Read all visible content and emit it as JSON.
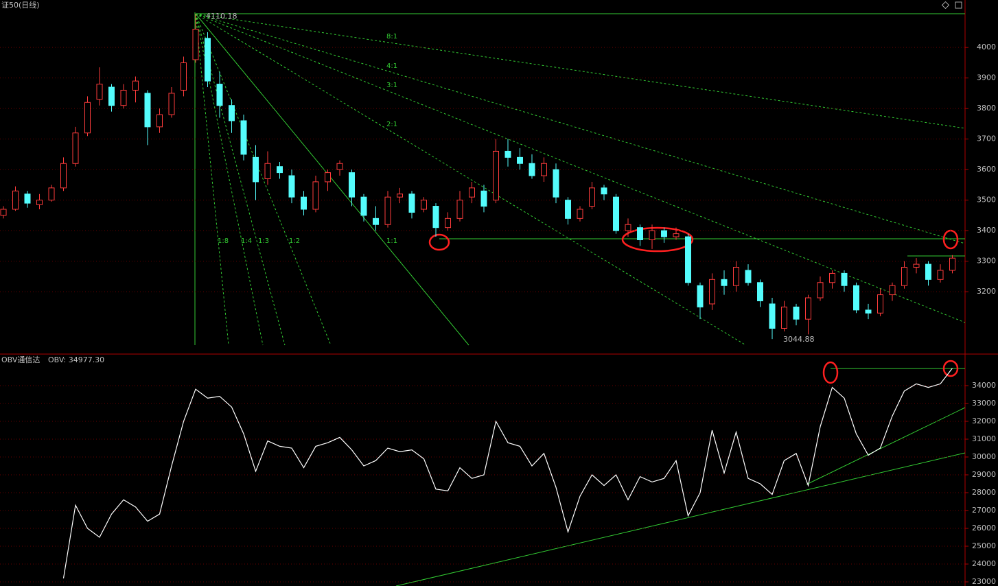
{
  "chart_data": [
    {
      "type": "candlestick",
      "title": "证50(日线)",
      "up_color": "#ff3c3c",
      "down_color": "#54fcfc",
      "open": [
        3450,
        3470,
        3520,
        3485,
        3500,
        3540,
        3620,
        3720,
        3830,
        3870,
        3810,
        3860,
        3850,
        3740,
        3780,
        3860,
        3960,
        4030,
        3880,
        3810,
        3760,
        3640,
        3570,
        3610,
        3580,
        3510,
        3470,
        3560,
        3600,
        3590,
        3510,
        3440,
        3420,
        3510,
        3520,
        3470,
        3480,
        3410,
        3440,
        3510,
        3530,
        3500,
        3660,
        3640,
        3620,
        3580,
        3600,
        3500,
        3440,
        3480,
        3540,
        3510,
        3400,
        3410,
        3370,
        3400,
        3380,
        3380,
        3220,
        3160,
        3240,
        3220,
        3270,
        3230,
        3160,
        3080,
        3150,
        3110,
        3180,
        3230,
        3260,
        3220,
        3140,
        3130,
        3190,
        3220,
        3280,
        3290,
        3240,
        3270
      ],
      "high": [
        3480,
        3545,
        3530,
        3520,
        3550,
        3640,
        3740,
        3840,
        3935,
        3880,
        3880,
        3905,
        3860,
        3800,
        3870,
        3970,
        4110.18,
        4050,
        3920,
        3830,
        3780,
        3680,
        3660,
        3625,
        3600,
        3530,
        3580,
        3600,
        3630,
        3600,
        3520,
        3480,
        3530,
        3540,
        3530,
        3510,
        3490,
        3460,
        3530,
        3560,
        3550,
        3700,
        3700,
        3670,
        3650,
        3640,
        3620,
        3510,
        3480,
        3560,
        3550,
        3520,
        3440,
        3420,
        3420,
        3410,
        3410,
        3390,
        3230,
        3260,
        3270,
        3300,
        3290,
        3240,
        3180,
        3170,
        3160,
        3190,
        3250,
        3270,
        3270,
        3230,
        3160,
        3210,
        3230,
        3300,
        3310,
        3300,
        3290,
        3320
      ],
      "low": [
        3440,
        3465,
        3475,
        3470,
        3495,
        3530,
        3610,
        3710,
        3810,
        3790,
        3800,
        3820,
        3680,
        3720,
        3770,
        3840,
        3950,
        3870,
        3770,
        3720,
        3630,
        3500,
        3550,
        3570,
        3490,
        3450,
        3460,
        3530,
        3580,
        3480,
        3430,
        3400,
        3410,
        3490,
        3440,
        3460,
        3380,
        3400,
        3430,
        3490,
        3460,
        3490,
        3610,
        3600,
        3570,
        3560,
        3490,
        3420,
        3430,
        3470,
        3500,
        3390,
        3380,
        3350,
        3340,
        3360,
        3370,
        3220,
        3110,
        3140,
        3190,
        3200,
        3220,
        3150,
        3044.88,
        3070,
        3090,
        3060,
        3170,
        3210,
        3200,
        3130,
        3110,
        3120,
        3170,
        3210,
        3260,
        3220,
        3230,
        3260
      ],
      "close": [
        3470,
        3530,
        3490,
        3500,
        3540,
        3620,
        3720,
        3820,
        3880,
        3810,
        3860,
        3890,
        3740,
        3780,
        3850,
        3950,
        4060,
        3890,
        3810,
        3760,
        3650,
        3560,
        3620,
        3590,
        3510,
        3470,
        3560,
        3590,
        3620,
        3510,
        3450,
        3420,
        3510,
        3520,
        3460,
        3500,
        3410,
        3440,
        3500,
        3540,
        3480,
        3660,
        3640,
        3620,
        3580,
        3620,
        3510,
        3440,
        3470,
        3540,
        3520,
        3400,
        3420,
        3370,
        3400,
        3380,
        3390,
        3230,
        3150,
        3240,
        3220,
        3280,
        3230,
        3170,
        3080,
        3150,
        3110,
        3180,
        3230,
        3260,
        3220,
        3140,
        3130,
        3190,
        3220,
        3280,
        3290,
        3240,
        3270,
        3310
      ],
      "ylim": [
        2998,
        4115
      ],
      "yticks": [
        3200,
        3300,
        3400,
        3500,
        3600,
        3700,
        3800,
        3900,
        4000
      ],
      "grid": true,
      "annotations": [
        "4110.18",
        "3044.88"
      ],
      "fan_labels": [
        "8:1",
        "4:1",
        "3:1",
        "2:1",
        "1:1",
        "1:2",
        "1:3",
        "1:4",
        "1:8"
      ]
    },
    {
      "type": "line",
      "title": "OBV通信达",
      "indicator_label": "OBV: 34977.30",
      "color": "#ffffff",
      "values": [
        null,
        null,
        null,
        null,
        null,
        23200,
        27300,
        26000,
        25500,
        26800,
        27600,
        27200,
        26400,
        26800,
        29500,
        32000,
        33800,
        33300,
        33400,
        32800,
        31300,
        29200,
        30900,
        30600,
        30500,
        29400,
        30600,
        30800,
        31100,
        30400,
        29500,
        29800,
        30500,
        30300,
        30400,
        29900,
        28200,
        28100,
        29400,
        28800,
        29000,
        32000,
        30800,
        30600,
        29500,
        30200,
        28300,
        25800,
        27800,
        29000,
        28400,
        29000,
        27600,
        28900,
        28600,
        28800,
        29800,
        26700,
        28000,
        31500,
        29100,
        31400,
        28800,
        28500,
        27900,
        29800,
        30200,
        28400,
        31700,
        33900,
        33300,
        31300,
        30100,
        30500,
        32300,
        33700,
        34100,
        33900,
        34100,
        34977.3
      ],
      "ylim": [
        22769,
        35731
      ],
      "yticks": [
        23000,
        24000,
        25000,
        26000,
        27000,
        28000,
        29000,
        30000,
        31000,
        32000,
        33000,
        34000
      ],
      "grid": true
    }
  ]
}
